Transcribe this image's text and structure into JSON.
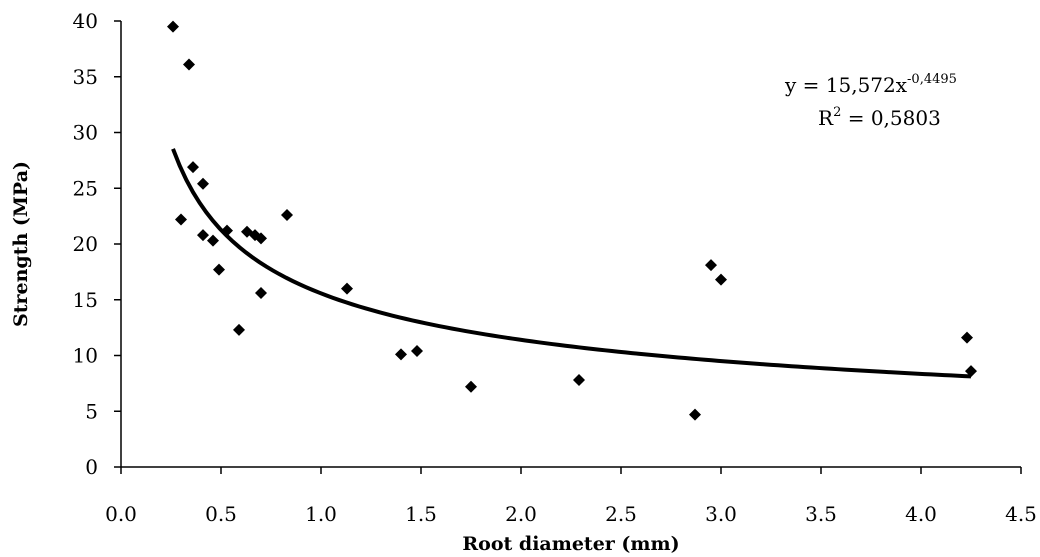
{
  "chart_data": {
    "type": "scatter",
    "xlabel": "Root diameter (mm)",
    "ylabel": "Strength (MPa)",
    "xlim": [
      0,
      4.5
    ],
    "ylim": [
      0,
      40
    ],
    "x_ticks": [
      "0.0",
      "0.5",
      "1.0",
      "1.5",
      "2.0",
      "2.5",
      "3.0",
      "3.5",
      "4.0",
      "4.5"
    ],
    "y_ticks": [
      "0",
      "5",
      "10",
      "15",
      "20",
      "25",
      "30",
      "35",
      "40"
    ],
    "grid": false,
    "legend": "none",
    "marker": "diamond",
    "color": "#000000",
    "series": [
      {
        "x": [
          0.26,
          0.34,
          0.36,
          0.3,
          0.41,
          0.41,
          0.46,
          0.49,
          0.53,
          0.59,
          0.63,
          0.67,
          0.7,
          0.7,
          0.83,
          1.13,
          1.4,
          1.48,
          1.75,
          2.29,
          2.87,
          2.95,
          3.0,
          4.23,
          4.25
        ],
        "y": [
          39.5,
          36.1,
          26.9,
          22.2,
          25.4,
          20.8,
          20.3,
          17.7,
          21.2,
          12.3,
          21.1,
          20.8,
          20.5,
          15.6,
          22.6,
          16.0,
          10.1,
          10.4,
          7.2,
          7.8,
          4.7,
          18.1,
          16.8,
          11.6,
          8.6
        ]
      }
    ],
    "trendline": {
      "type": "power",
      "coefficient": 15.572,
      "exponent": -0.4495,
      "x_range": [
        0.26,
        4.25
      ],
      "stroke_color": "#000000",
      "equation_prefix": "y = 15,572x",
      "equation_exponent": "-0,4495",
      "r2_prefix": "R",
      "r2_sup": "2",
      "r2_value": " = 0,5803"
    }
  }
}
